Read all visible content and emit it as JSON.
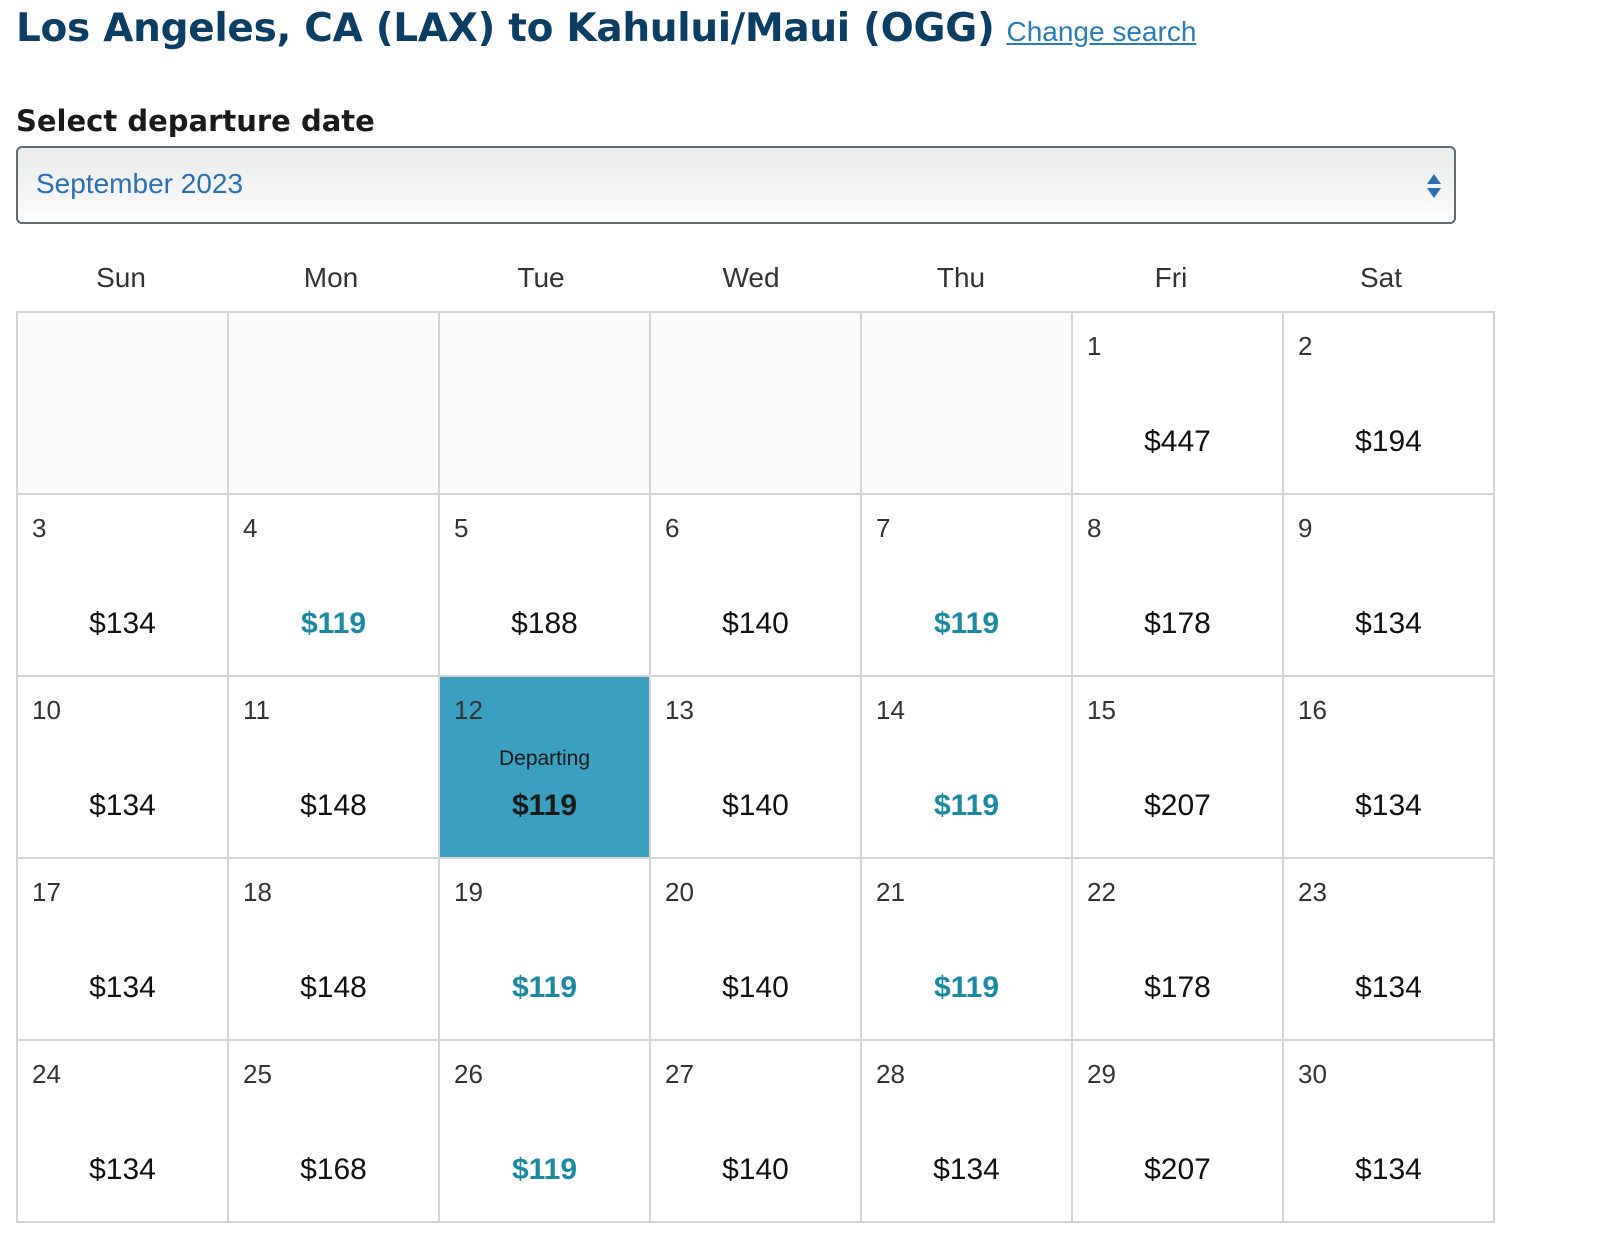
{
  "header": {
    "title": "Los Angeles, CA (LAX) to Kahului/Maui (OGG)",
    "change_search": "Change search"
  },
  "date_picker": {
    "label": "Select departure date",
    "selected_month": "September 2023"
  },
  "colors": {
    "title": "#0c3d63",
    "link": "#2a7cb5",
    "low_fare": "#1b8aa0",
    "selected_cell": "#3b9fbf"
  },
  "weekdays": [
    "Sun",
    "Mon",
    "Tue",
    "Wed",
    "Thu",
    "Fri",
    "Sat"
  ],
  "calendar": {
    "leading_empty_cells": 5,
    "days": [
      {
        "day": "1",
        "price": "$447",
        "low": false
      },
      {
        "day": "2",
        "price": "$194",
        "low": false
      },
      {
        "day": "3",
        "price": "$134",
        "low": false
      },
      {
        "day": "4",
        "price": "$119",
        "low": true
      },
      {
        "day": "5",
        "price": "$188",
        "low": false
      },
      {
        "day": "6",
        "price": "$140",
        "low": false
      },
      {
        "day": "7",
        "price": "$119",
        "low": true
      },
      {
        "day": "8",
        "price": "$178",
        "low": false
      },
      {
        "day": "9",
        "price": "$134",
        "low": false
      },
      {
        "day": "10",
        "price": "$134",
        "low": false
      },
      {
        "day": "11",
        "price": "$148",
        "low": false
      },
      {
        "day": "12",
        "price": "$119",
        "low": true,
        "selected": true,
        "status": "Departing"
      },
      {
        "day": "13",
        "price": "$140",
        "low": false
      },
      {
        "day": "14",
        "price": "$119",
        "low": true
      },
      {
        "day": "15",
        "price": "$207",
        "low": false
      },
      {
        "day": "16",
        "price": "$134",
        "low": false
      },
      {
        "day": "17",
        "price": "$134",
        "low": false
      },
      {
        "day": "18",
        "price": "$148",
        "low": false
      },
      {
        "day": "19",
        "price": "$119",
        "low": true
      },
      {
        "day": "20",
        "price": "$140",
        "low": false
      },
      {
        "day": "21",
        "price": "$119",
        "low": true
      },
      {
        "day": "22",
        "price": "$178",
        "low": false
      },
      {
        "day": "23",
        "price": "$134",
        "low": false
      },
      {
        "day": "24",
        "price": "$134",
        "low": false
      },
      {
        "day": "25",
        "price": "$168",
        "low": false
      },
      {
        "day": "26",
        "price": "$119",
        "low": true
      },
      {
        "day": "27",
        "price": "$140",
        "low": false
      },
      {
        "day": "28",
        "price": "$134",
        "low": false
      },
      {
        "day": "29",
        "price": "$207",
        "low": false
      },
      {
        "day": "30",
        "price": "$134",
        "low": false
      }
    ]
  }
}
